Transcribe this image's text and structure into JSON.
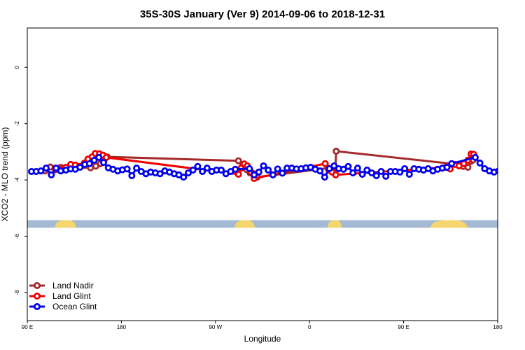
{
  "chart_data": {
    "type": "line",
    "title": "35S-30S January (Ver 9)   2014-09-06 to 2018-12-31",
    "xlabel": "Longitude",
    "ylabel": "XCO2 - MLO trend (ppm)",
    "xlim": [
      90,
      540
    ],
    "ylim": [
      -9.0,
      1.4
    ],
    "x_ticks": [
      {
        "value": 90,
        "label": "90 E"
      },
      {
        "value": 180,
        "label": "180"
      },
      {
        "value": 270,
        "label": "90 W"
      },
      {
        "value": 360,
        "label": "0"
      },
      {
        "value": 450,
        "label": "90 E"
      },
      {
        "value": 540,
        "label": "180"
      }
    ],
    "y_ticks": [
      {
        "value": 0,
        "label": "0"
      },
      {
        "value": -2,
        "label": "-2"
      },
      {
        "value": -4,
        "label": "-4"
      },
      {
        "value": -6,
        "label": "-6"
      },
      {
        "value": -8,
        "label": "-8"
      }
    ],
    "land_strip": {
      "y_top": -5.43,
      "y_bottom": -5.7,
      "ocean_color": "#a3b9d4",
      "land_color": "#f5d56e",
      "land_segments": [
        [
          116,
          137
        ],
        [
          288,
          308
        ],
        [
          377,
          391
        ],
        [
          475,
          512
        ]
      ]
    },
    "legend": {
      "position": "bottom-left",
      "entries": [
        "Land Nadir",
        "Land Glint",
        "Ocean Glint"
      ]
    },
    "series": [
      {
        "name": "Land Nadir",
        "color": "#a52a2a",
        "x": [
          107.0,
          112.0,
          117.0,
          122.0,
          127.0,
          132.0,
          150.5,
          155.5,
          160.0,
          163.5,
          166.5,
          292.0,
          296.0,
          300.0,
          303.0,
          306.5,
          310.0,
          377.5,
          380.5,
          384.5,
          385.5,
          502.5,
          507.0,
          511.5,
          514.5,
          516.5
        ],
        "y": [
          -3.68,
          -3.54,
          -3.64,
          -3.55,
          -3.55,
          -3.56,
          -3.57,
          -3.51,
          -3.42,
          -3.29,
          -3.18,
          -3.32,
          -3.55,
          -3.64,
          -3.75,
          -3.78,
          -3.9,
          -3.58,
          -3.65,
          -3.75,
          -2.98,
          -3.45,
          -3.52,
          -3.55,
          -3.34,
          -3.29
        ]
      },
      {
        "name": "Land Glint",
        "color": "#ee0000",
        "x": [
          117.0,
          122.0,
          127.0,
          131.5,
          136.0,
          140.0,
          144.5,
          148.0,
          152.0,
          155.0,
          159.0,
          162.5,
          165.5,
          292.0,
          294.5,
          297.5,
          300.5,
          304.0,
          307.0,
          375.0,
          378.5,
          381.5,
          385.0,
          490.5,
          494.5,
          499.0,
          503.0,
          507.5,
          511.5,
          514.5,
          517.0
        ],
        "y": [
          -3.58,
          -3.62,
          -3.55,
          -3.45,
          -3.47,
          -3.52,
          -3.4,
          -3.26,
          -3.18,
          -3.06,
          -3.07,
          -3.12,
          -3.2,
          -3.8,
          -3.58,
          -3.43,
          -3.5,
          -3.72,
          -3.95,
          -3.42,
          -3.65,
          -3.72,
          -3.82,
          -3.55,
          -3.61,
          -3.45,
          -3.5,
          -3.42,
          -3.3,
          -3.08,
          -3.09
        ]
      },
      {
        "name": "Ocean Glint",
        "color": "#0000ee",
        "x": [
          94.0,
          98.5,
          103.0,
          108.0,
          113.0,
          117.5,
          122.0,
          127.0,
          131.5,
          136.0,
          140.5,
          145.0,
          149.5,
          154.0,
          158.5,
          163.0,
          167.5,
          172.0,
          176.5,
          181.0,
          185.5,
          190.0,
          194.5,
          199.0,
          203.5,
          208.0,
          212.5,
          217.0,
          221.5,
          226.0,
          230.5,
          235.0,
          239.5,
          244.0,
          248.5,
          253.0,
          257.5,
          262.0,
          266.5,
          271.0,
          275.5,
          280.0,
          284.5,
          289.0,
          302.5,
          307.0,
          311.5,
          316.0,
          320.5,
          325.0,
          329.5,
          334.0,
          338.5,
          343.0,
          347.5,
          352.0,
          356.5,
          361.0,
          365.5,
          370.0,
          374.5,
          379.0,
          383.5,
          388.0,
          392.5,
          397.0,
          401.5,
          406.0,
          410.5,
          415.0,
          419.5,
          424.0,
          428.5,
          433.0,
          437.5,
          442.0,
          446.5,
          451.0,
          455.5,
          460.0,
          464.5,
          469.0,
          473.5,
          478.0,
          482.5,
          487.0,
          491.5,
          496.0,
          518.5,
          523.0,
          527.5,
          532.0,
          536.5,
          541.0
        ],
        "y": [
          -3.7,
          -3.7,
          -3.68,
          -3.58,
          -3.82,
          -3.58,
          -3.68,
          -3.65,
          -3.61,
          -3.62,
          -3.55,
          -3.45,
          -3.42,
          -3.3,
          -3.2,
          -3.38,
          -3.57,
          -3.62,
          -3.68,
          -3.64,
          -3.61,
          -3.85,
          -3.58,
          -3.7,
          -3.78,
          -3.72,
          -3.75,
          -3.78,
          -3.68,
          -3.72,
          -3.78,
          -3.82,
          -3.9,
          -3.75,
          -3.65,
          -3.52,
          -3.7,
          -3.58,
          -3.7,
          -3.65,
          -3.65,
          -3.78,
          -3.7,
          -3.62,
          -3.6,
          -3.82,
          -3.72,
          -3.5,
          -3.65,
          -3.82,
          -3.61,
          -3.76,
          -3.58,
          -3.58,
          -3.61,
          -3.6,
          -3.57,
          -3.55,
          -3.62,
          -3.68,
          -3.9,
          -3.6,
          -3.5,
          -3.6,
          -3.62,
          -3.52,
          -3.75,
          -3.58,
          -3.8,
          -3.65,
          -3.75,
          -3.85,
          -3.7,
          -3.87,
          -3.7,
          -3.7,
          -3.72,
          -3.6,
          -3.8,
          -3.6,
          -3.62,
          -3.65,
          -3.6,
          -3.68,
          -3.62,
          -3.58,
          -3.55,
          -3.42,
          -3.2,
          -3.4,
          -3.6,
          -3.68,
          -3.72,
          -3.68
        ]
      }
    ]
  }
}
